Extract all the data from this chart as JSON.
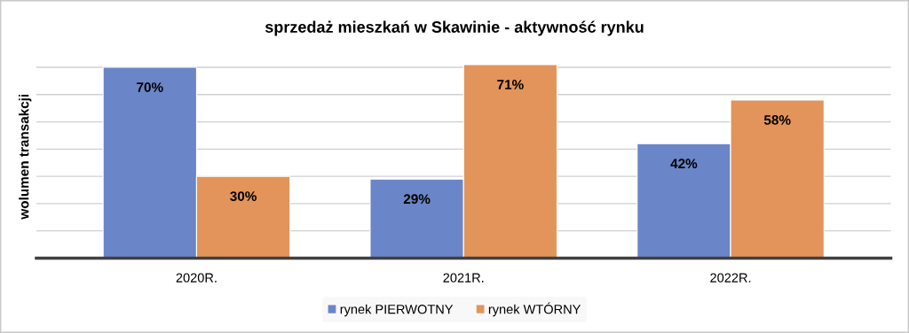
{
  "chart_data": {
    "type": "bar",
    "title": "sprzedaż mieszkań w Skawinie - aktywność rynku",
    "ylabel": "wolumen transakcji",
    "categories": [
      "2020R.",
      "2021R.",
      "2022R."
    ],
    "series": [
      {
        "name": "rynek PIERWOTNY",
        "color": "#6a86c8",
        "values": [
          70,
          29,
          42
        ],
        "value_labels": [
          "70%",
          "29%",
          "42%"
        ]
      },
      {
        "name": "rynek WTÓRNY",
        "color": "#e2945a",
        "values": [
          30,
          71,
          58
        ],
        "value_labels": [
          "30%",
          "71%",
          "58%"
        ]
      }
    ],
    "tick_labels": "x",
    "grid": "y",
    "legend": "bottom"
  }
}
